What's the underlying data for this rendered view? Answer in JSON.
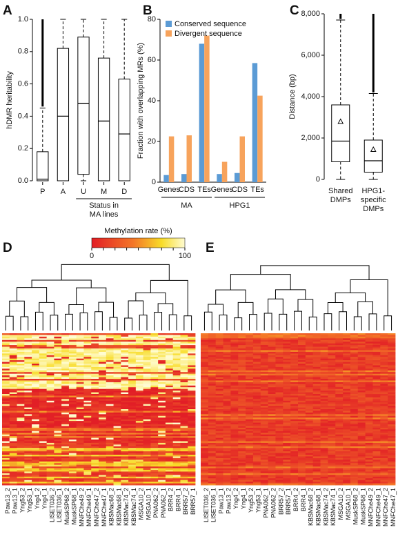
{
  "chart_data": [
    {
      "type": "box",
      "panel": "A",
      "ylabel": "hDMR heritability",
      "categories": [
        "P",
        "A",
        "U",
        "M",
        "D"
      ],
      "boxes": [
        {
          "whislo": 0,
          "q1": 0,
          "med": 0.01,
          "q3": 0.18,
          "whishi": 0.45,
          "outlier_range": [
            0.46,
            1.0
          ]
        },
        {
          "whislo": 0,
          "q1": 0,
          "med": 0.4,
          "q3": 0.82,
          "whishi": 1.0
        },
        {
          "whislo": 0,
          "q1": 0.04,
          "med": 0.48,
          "q3": 0.89,
          "whishi": 1.0
        },
        {
          "whislo": 0,
          "q1": 0,
          "med": 0.37,
          "q3": 0.76,
          "whishi": 1.0
        },
        {
          "whislo": 0,
          "q1": 0,
          "med": 0.29,
          "q3": 0.63,
          "whishi": 1.0
        }
      ],
      "ylim": [
        0,
        1
      ],
      "yticks": [
        {
          "value": 0,
          "label": "0.0"
        },
        {
          "value": 0.2,
          "label": "0.2"
        },
        {
          "value": 0.4,
          "label": "0.4"
        },
        {
          "value": 0.6,
          "label": "0.6"
        },
        {
          "value": 0.8,
          "label": "0.8"
        },
        {
          "value": 1,
          "label": "1.0"
        }
      ],
      "xlabel": [
        "Status in",
        "MA lines"
      ]
    },
    {
      "type": "bar",
      "panel": "B",
      "ylabel": "Fraction with overlapping MRs (%)",
      "categories": [
        "Genes",
        "CDS",
        "TEs",
        "Genes",
        "CDS",
        "TEs"
      ],
      "group_labels": [
        "MA",
        "HPG1"
      ],
      "series": [
        {
          "name": "Conserved sequence",
          "color": "#5b9bd5",
          "values": [
            3.5,
            4,
            68,
            4,
            4.5,
            58.5
          ]
        },
        {
          "name": "Divergent sequence",
          "color": "#f7a35c",
          "values": [
            22.5,
            23,
            72,
            10,
            22.5,
            42.5
          ]
        }
      ],
      "ylim": [
        0,
        80
      ],
      "yticks": [
        0,
        20,
        40,
        60,
        80
      ]
    },
    {
      "type": "box",
      "panel": "C",
      "ylabel": "Distance (bp)",
      "categories": [
        [
          "Shared",
          "DMPs"
        ],
        [
          "HPG1-",
          "specific",
          "DMPs"
        ]
      ],
      "boxes": [
        {
          "whislo": 0,
          "q1": 850,
          "med": 1850,
          "q3": 3600,
          "whishi": 7700,
          "mean": 2800,
          "outlier_range": [
            7750,
            8000
          ]
        },
        {
          "whislo": 0,
          "q1": 350,
          "med": 900,
          "q3": 1900,
          "whishi": 4150,
          "mean": 1450,
          "outlier_range": [
            4200,
            8000
          ]
        }
      ],
      "ylim": [
        0,
        8000
      ],
      "yticks": [
        0,
        {
          "value": 2000,
          "label": "2,000"
        },
        {
          "value": 4000,
          "label": "4,000"
        },
        {
          "value": 6000,
          "label": "6,000"
        },
        {
          "value": 8000,
          "label": "8,000"
        }
      ]
    },
    {
      "type": "heatmap",
      "panel": "D",
      "colorbar_title": "Methylation rate (%)",
      "colorbar_lim": [
        0,
        100
      ],
      "samples": [
        "Paw13_2",
        "Paw13_1",
        "Yng53_2",
        "Yng53_1",
        "Yng4_2",
        "Yng4_1",
        "LISET036_2",
        "LISET036_1",
        "MuskSP68_2",
        "MuskSP68_1",
        "MNFChe49_2",
        "MNFChe49_1",
        "MNFChe47_2",
        "MNFChe47_1",
        "KBSMac68_2",
        "KBSMac68_1",
        "KBSMac74_2",
        "KBSMac74_1",
        "MSGA10_2",
        "MSGA10_1",
        "PNA062_2",
        "PNA062_1",
        "BRR4_2",
        "BRR4_1",
        "BRR57_2",
        "BRR57_1"
      ]
    },
    {
      "type": "heatmap",
      "panel": "E",
      "samples": [
        "LISET036_2",
        "LISET036_1",
        "Paw13_1",
        "Paw13_2",
        "Yng4_2",
        "Yng4_1",
        "Yng53_2",
        "Yng53_1",
        "PNA062_1",
        "PNA062_2",
        "BRR57_2",
        "BRR57_1",
        "BRR4_2",
        "BRR4_1",
        "KBSMac68_2",
        "KBSMac68_1",
        "KBSMac74_2",
        "KBSMac74_1",
        "MSGA10_2",
        "MSGA10_1",
        "MuskSP68_2",
        "MuskSP68_1",
        "MNFChe49_2",
        "MNFChe49_1",
        "MNFChe47_2",
        "MNFChe47_1"
      ]
    }
  ]
}
